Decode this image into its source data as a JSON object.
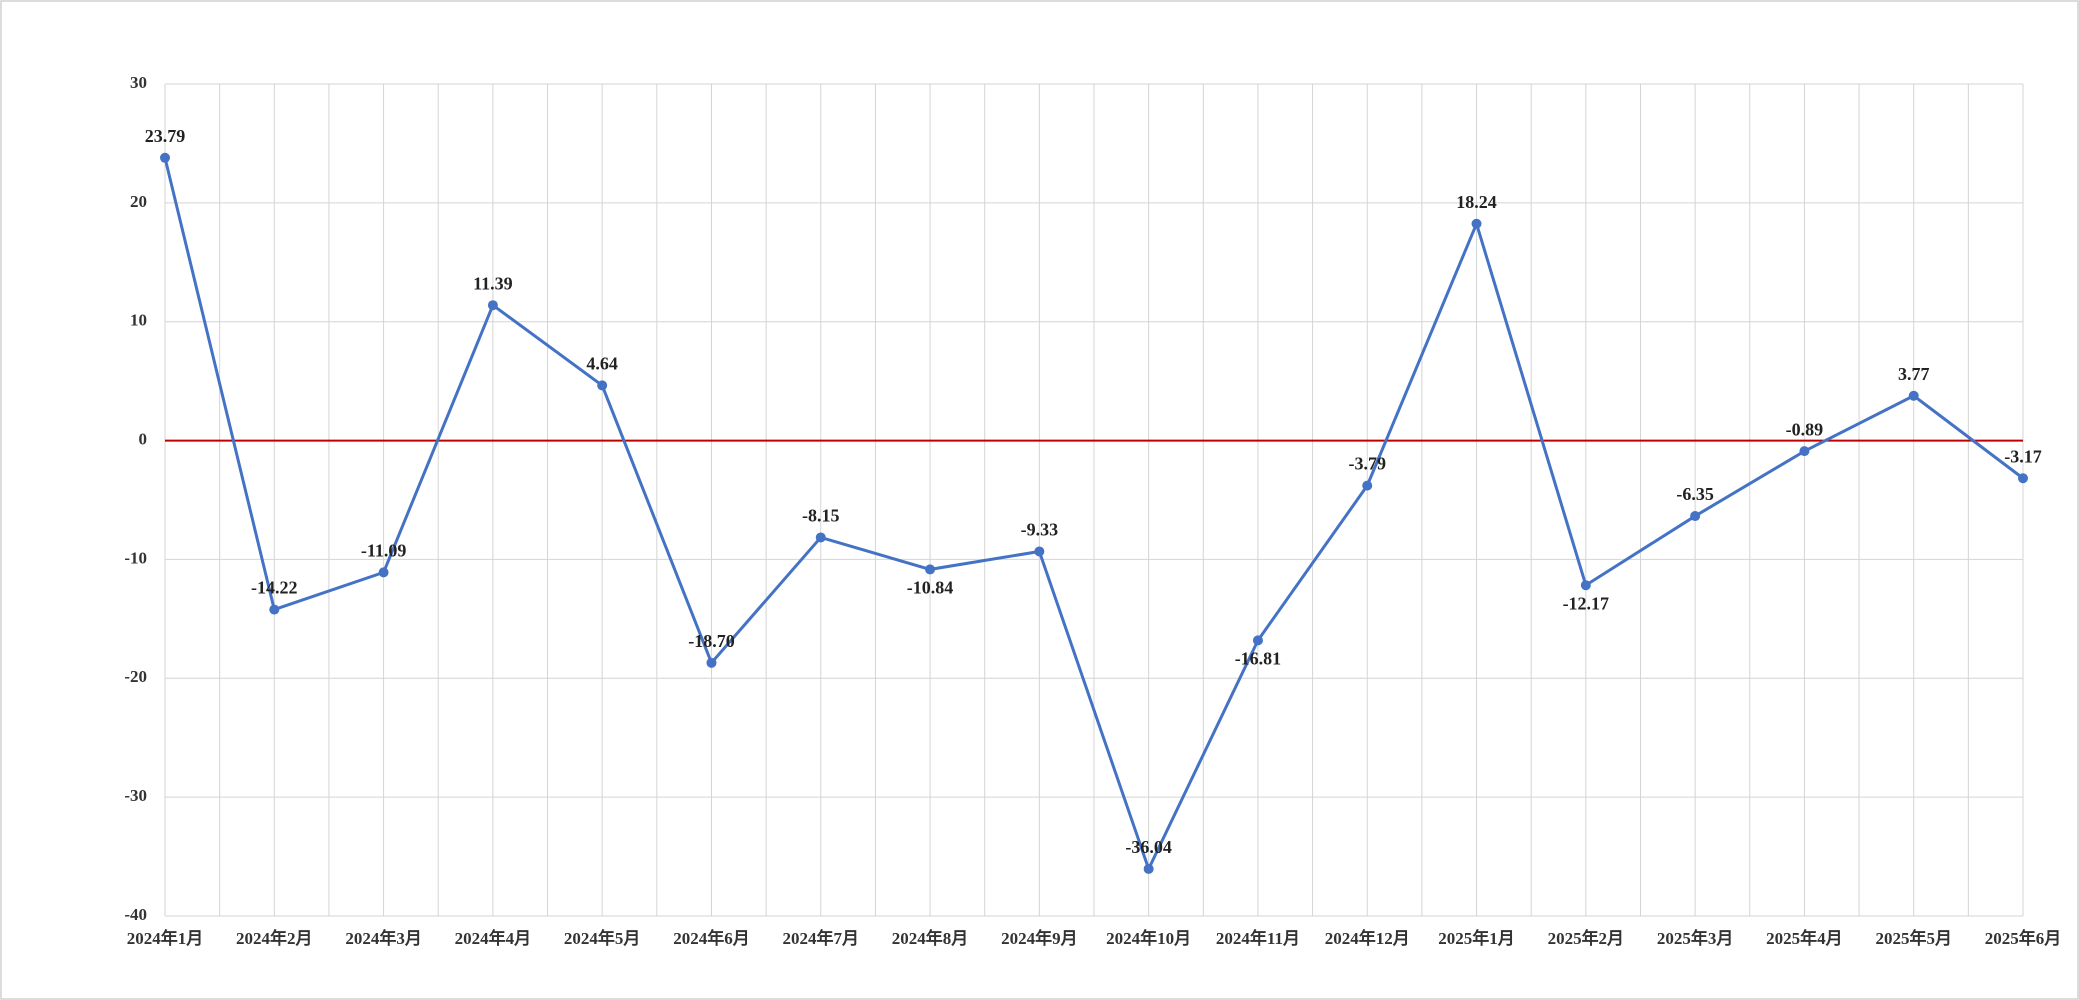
{
  "chart_data": {
    "type": "line",
    "categories": [
      "2024年1月",
      "2024年2月",
      "2024年3月",
      "2024年4月",
      "2024年5月",
      "2024年6月",
      "2024年7月",
      "2024年8月",
      "2024年9月",
      "2024年10月",
      "2024年11月",
      "2024年12月",
      "2025年1月",
      "2025年2月",
      "2025年3月",
      "2025年4月",
      "2025年5月",
      "2025年6月"
    ],
    "series": [
      {
        "color": "#4472c4",
        "values": [
          23.79,
          -14.22,
          -11.09,
          11.39,
          4.64,
          -18.7,
          -8.15,
          -10.84,
          -9.33,
          -36.04,
          -16.81,
          -3.79,
          18.24,
          -12.17,
          -6.35,
          -0.89,
          3.77,
          -3.17
        ],
        "value_labels": [
          "23.79",
          "-14.22",
          "-11.09",
          "11.39",
          "4.64",
          "-18.70",
          "-8.15",
          "-10.84",
          "-9.33",
          "-36.04",
          "-16.81",
          "-3.79",
          "18.24",
          "-12.17",
          "-6.35",
          "-0.89",
          "3.77",
          "-3.17"
        ]
      }
    ],
    "ylim": [
      -40,
      30
    ],
    "yticks": [
      -40,
      -30,
      -20,
      -10,
      0,
      10,
      20,
      30
    ],
    "grid": true,
    "zero_line_color": "#c00000"
  }
}
